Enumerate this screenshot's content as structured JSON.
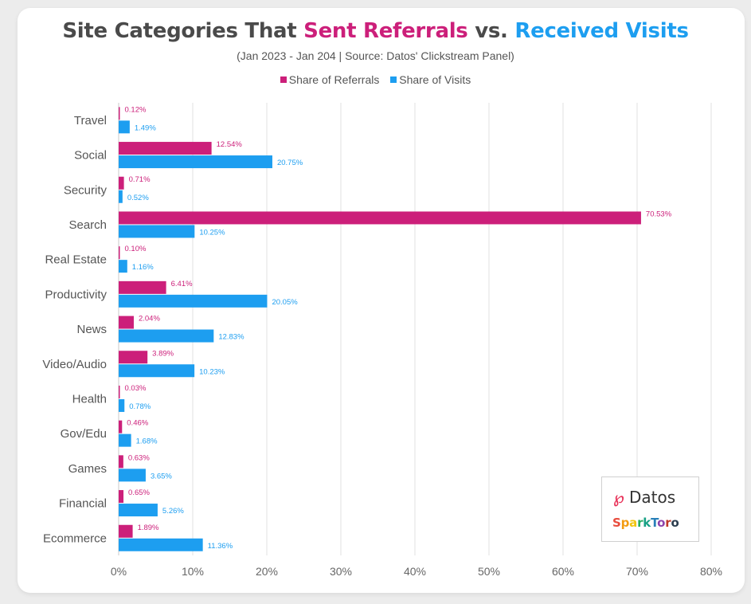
{
  "header": {
    "title_part1": "Site Categories That ",
    "title_part2": "Sent Referrals",
    "title_part3": " vs. ",
    "title_part4": "Received Visits",
    "subtitle": "(Jan 2023 - Jan 204 | Source: Datos' Clickstream Panel)"
  },
  "colors": {
    "referrals": "#cc1f7a",
    "visits": "#1d9ef0"
  },
  "logos": {
    "datos": "Datos",
    "sparktoro": "SparkToro"
  },
  "chart_data": {
    "type": "bar",
    "orientation": "horizontal",
    "title": "Site Categories That Sent Referrals vs. Received Visits",
    "subtitle": "(Jan 2023 - Jan 204 | Source: Datos' Clickstream Panel)",
    "categories": [
      "Travel",
      "Social",
      "Security",
      "Search",
      "Real Estate",
      "Productivity",
      "News",
      "Video/Audio",
      "Health",
      "Gov/Edu",
      "Games",
      "Financial",
      "Ecommerce"
    ],
    "series": [
      {
        "name": "Share of Referrals",
        "color": "#cc1f7a",
        "values": [
          0.12,
          12.54,
          0.71,
          70.53,
          0.1,
          6.41,
          2.04,
          3.89,
          0.03,
          0.46,
          0.63,
          0.65,
          1.89
        ],
        "labels": [
          "0.12%",
          "12.54%",
          "0.71%",
          "70.53%",
          "0.10%",
          "6.41%",
          "2.04%",
          "3.89%",
          "0.03%",
          "0.46%",
          "0.63%",
          "0.65%",
          "1.89%"
        ]
      },
      {
        "name": "Share of Visits",
        "color": "#1d9ef0",
        "values": [
          1.49,
          20.75,
          0.52,
          10.25,
          1.16,
          20.05,
          12.83,
          10.23,
          0.78,
          1.68,
          3.65,
          5.26,
          11.36
        ],
        "labels": [
          "1.49%",
          "20.75%",
          "0.52%",
          "10.25%",
          "1.16%",
          "20.05%",
          "12.83%",
          "10.23%",
          "0.78%",
          "1.68%",
          "3.65%",
          "5.26%",
          "11.36%"
        ]
      }
    ],
    "xlim": [
      0,
      80
    ],
    "xticks": [
      "0%",
      "10%",
      "20%",
      "30%",
      "40%",
      "50%",
      "60%",
      "70%",
      "80%"
    ],
    "grid": true,
    "legend": "top-center"
  }
}
